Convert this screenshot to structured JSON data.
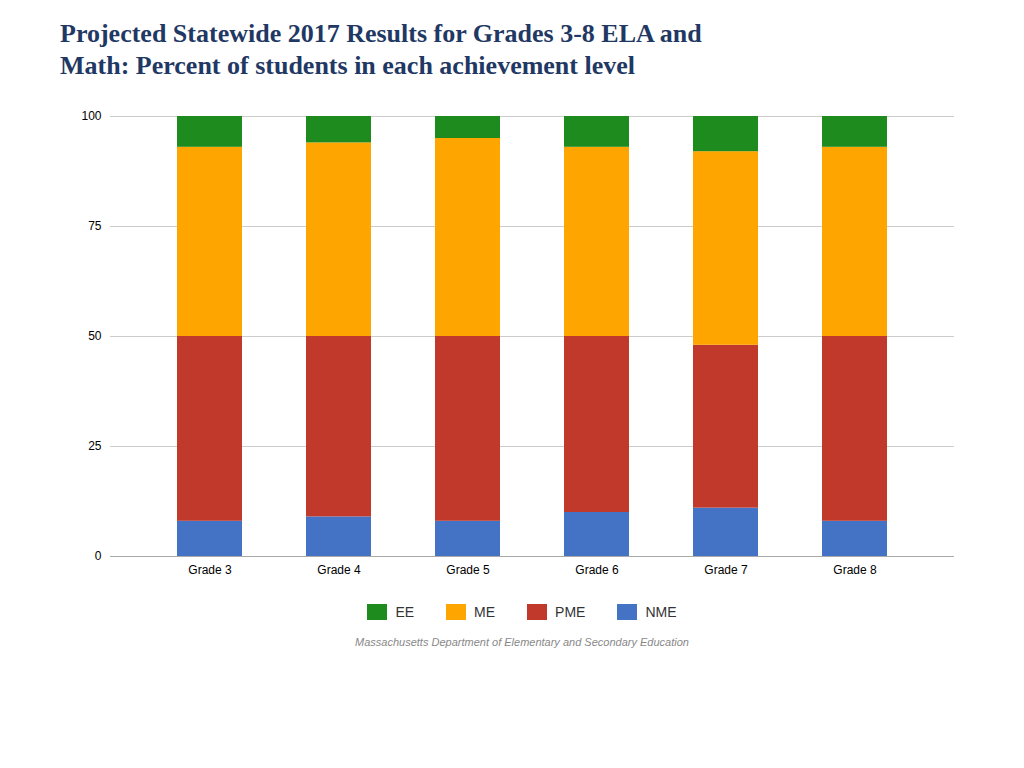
{
  "chart_data": {
    "type": "bar",
    "title": "Projected Statewide 2017 Results for Grades 3-8 ELA and",
    "subtitle": "Math: Percent of students in each achievement level",
    "caption": "Massachusetts Department of Elementary and Secondary Education",
    "categories": [
      "Grade 3",
      "Grade 4",
      "Grade 5",
      "Grade 6",
      "Grade 7",
      "Grade 8"
    ],
    "series": [
      {
        "name": "NME",
        "color": "#4472C4",
        "values": [
          8,
          9,
          8,
          10,
          11,
          8
        ]
      },
      {
        "name": "PME",
        "color": "#C0392B",
        "values": [
          42,
          41,
          42,
          40,
          37,
          42
        ]
      },
      {
        "name": "ME",
        "color": "#FFA500",
        "values": [
          43,
          44,
          45,
          43,
          44,
          43
        ]
      },
      {
        "name": "EE",
        "color": "#1E8B1E",
        "values": [
          7,
          6,
          5,
          7,
          8,
          7
        ]
      }
    ],
    "stacked": true,
    "ylim": [
      0,
      100
    ],
    "yticks": [
      0,
      25,
      50,
      75,
      100
    ],
    "grid": true,
    "legend": "bottom"
  }
}
